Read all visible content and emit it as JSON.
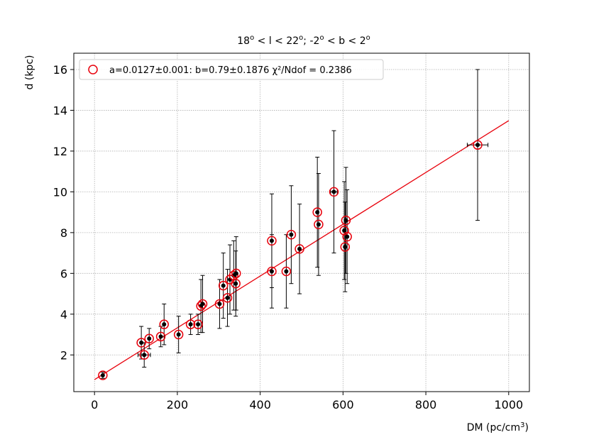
{
  "chart_data": {
    "type": "scatter",
    "title_parts": {
      "p1": "18",
      "p1_sup": "o",
      "p2": " < l < 22",
      "p2_sup": "o",
      "p3": "; -2",
      "p3_sup": "o",
      "p4": " < b < 2",
      "p4_sup": "o"
    },
    "xlabel_main": "DM (pc/cm",
    "xlabel_sup": "3",
    "xlabel_end": ")",
    "ylabel": "d (kpc)",
    "xlim": [
      -50,
      1050
    ],
    "ylim": [
      0.2,
      16.8
    ],
    "xticks": [
      0,
      200,
      400,
      600,
      800,
      1000
    ],
    "yticks": [
      2,
      4,
      6,
      8,
      10,
      12,
      14,
      16
    ],
    "grid": true,
    "legend_position": "top-left",
    "legend_label": "a=0.0127±0.001: b=0.79±0.1876 χ²/Ndof = 0.2386",
    "fit": {
      "slope": 0.0127,
      "intercept": 0.79,
      "x_range": [
        0,
        1000
      ]
    },
    "points": [
      {
        "x": 20,
        "y": 1.0,
        "yerr": 0.15,
        "xerr": 0
      },
      {
        "x": 113,
        "y": 2.6,
        "yerr": 0.8,
        "xerr": 0
      },
      {
        "x": 120,
        "y": 2.0,
        "yerr": 0.6,
        "xerr": 15
      },
      {
        "x": 132,
        "y": 2.8,
        "yerr": 0.5,
        "xerr": 0
      },
      {
        "x": 160,
        "y": 2.9,
        "yerr": 0.5,
        "xerr": 0
      },
      {
        "x": 168,
        "y": 3.5,
        "yerr": 1.0,
        "xerr": 0
      },
      {
        "x": 203,
        "y": 3.0,
        "yerr": 0.9,
        "xerr": 0
      },
      {
        "x": 232,
        "y": 3.5,
        "yerr": 0.5,
        "xerr": 0
      },
      {
        "x": 250,
        "y": 3.5,
        "yerr": 0.5,
        "xerr": 0
      },
      {
        "x": 257,
        "y": 4.4,
        "yerr": 1.3,
        "xerr": 0
      },
      {
        "x": 261,
        "y": 4.5,
        "yerr": 1.4,
        "xerr": 0
      },
      {
        "x": 302,
        "y": 4.5,
        "yerr": 1.2,
        "xerr": 0
      },
      {
        "x": 311,
        "y": 5.4,
        "yerr": 1.6,
        "xerr": 0
      },
      {
        "x": 321,
        "y": 4.8,
        "yerr": 1.4,
        "xerr": 0
      },
      {
        "x": 327,
        "y": 5.7,
        "yerr": 1.7,
        "xerr": 0
      },
      {
        "x": 336,
        "y": 5.9,
        "yerr": 1.7,
        "xerr": 0
      },
      {
        "x": 342,
        "y": 6.0,
        "yerr": 1.8,
        "xerr": 0
      },
      {
        "x": 341,
        "y": 5.5,
        "yerr": 1.6,
        "xerr": 0
      },
      {
        "x": 428,
        "y": 7.6,
        "yerr": 2.3,
        "xerr": 0
      },
      {
        "x": 428,
        "y": 6.1,
        "yerr": 1.8,
        "xerr": 0
      },
      {
        "x": 463,
        "y": 6.1,
        "yerr": 1.8,
        "xerr": 0
      },
      {
        "x": 475,
        "y": 7.9,
        "yerr": 2.4,
        "xerr": 0
      },
      {
        "x": 495,
        "y": 7.2,
        "yerr": 2.2,
        "xerr": 0
      },
      {
        "x": 538,
        "y": 9.0,
        "yerr": 2.7,
        "xerr": 0
      },
      {
        "x": 541,
        "y": 8.4,
        "yerr": 2.5,
        "xerr": 0
      },
      {
        "x": 578,
        "y": 10.0,
        "yerr": 3.0,
        "xerr": 8
      },
      {
        "x": 603,
        "y": 8.1,
        "yerr": 2.4,
        "xerr": 0
      },
      {
        "x": 605,
        "y": 7.3,
        "yerr": 2.2,
        "xerr": 0
      },
      {
        "x": 607,
        "y": 8.6,
        "yerr": 2.6,
        "xerr": 0
      },
      {
        "x": 610,
        "y": 7.8,
        "yerr": 2.3,
        "xerr": 0
      },
      {
        "x": 925,
        "y": 12.3,
        "yerr": 3.7,
        "xerr": 25
      }
    ],
    "colors": {
      "marker_ring": "#e8000b",
      "marker_dot": "#000000",
      "fit_line": "#e8000b",
      "errorbar": "#000000",
      "grid": "#b0b0b0"
    }
  }
}
